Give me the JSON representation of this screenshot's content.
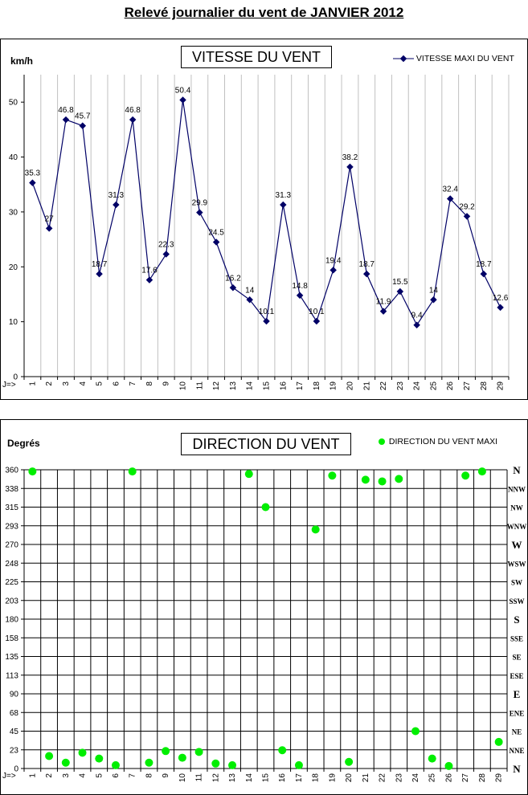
{
  "page": {
    "title": "Relevé journalier du vent de JANVIER 2012"
  },
  "chart_data": [
    {
      "type": "line",
      "title": "VITESSE DU VENT",
      "ylabel": "km/h",
      "xlabel": "J=>",
      "ylim": [
        0,
        55
      ],
      "yticks": [
        0,
        10,
        20,
        30,
        40,
        50
      ],
      "grid": "vertical",
      "legend_position": "top-right",
      "categories": [
        "1",
        "2",
        "3",
        "4",
        "5",
        "6",
        "7",
        "8",
        "9",
        "10",
        "11",
        "12",
        "13",
        "14",
        "15",
        "16",
        "17",
        "18",
        "19",
        "20",
        "21",
        "22",
        "23",
        "24",
        "25",
        "26",
        "27",
        "28",
        "29"
      ],
      "series": [
        {
          "name": "VITESSE MAXI DU VENT",
          "color": "#000066",
          "values": [
            35.3,
            27,
            46.8,
            45.7,
            18.7,
            31.3,
            46.8,
            17.6,
            22.3,
            50.4,
            29.9,
            24.5,
            16.2,
            14,
            10.1,
            31.3,
            14.8,
            10.1,
            19.4,
            38.2,
            18.7,
            11.9,
            15.5,
            9.4,
            14,
            32.4,
            29.2,
            18.7,
            12.6
          ],
          "labels": [
            "35.3",
            "27",
            "46.8",
            "45.7",
            "18.7",
            "31.3",
            "46.8",
            "17.6",
            "22.3",
            "50.4",
            "29.9",
            "24.5",
            "16.2",
            "14",
            "10.1",
            "31.3",
            "14.8",
            "10.1",
            "19.4",
            "38.2",
            "18.7",
            "11.9",
            "15.5",
            "9.4",
            "14",
            "32.4",
            "29.2",
            "18.7",
            "12.6"
          ]
        }
      ]
    },
    {
      "type": "scatter",
      "title": "DIRECTION DU VENT",
      "ylabel": "Degrés",
      "xlabel": "J=>",
      "ylim": [
        0,
        360
      ],
      "yticks": [
        "0",
        "23",
        "45",
        "68",
        "90",
        "113",
        "135",
        "158",
        "180",
        "203",
        "225",
        "248",
        "270",
        "293",
        "315",
        "338",
        "360"
      ],
      "compass": [
        "N",
        "NNE",
        "NE",
        "ENE",
        "E",
        "ESE",
        "SE",
        "SSE",
        "S",
        "SSW",
        "SW",
        "WSW",
        "W",
        "WNW",
        "NW",
        "NNW",
        "N"
      ],
      "grid": "both",
      "legend_position": "top-right",
      "categories": [
        "1",
        "2",
        "3",
        "4",
        "5",
        "6",
        "7",
        "8",
        "9",
        "10",
        "11",
        "12",
        "13",
        "14",
        "15",
        "16",
        "17",
        "18",
        "19",
        "20",
        "21",
        "22",
        "23",
        "24",
        "25",
        "26",
        "27",
        "28",
        "29"
      ],
      "series": [
        {
          "name": "DIRECTION DU VENT MAXI",
          "color": "#00EE00",
          "values": [
            358,
            15,
            7,
            19,
            12,
            4,
            358,
            7,
            21,
            13,
            20,
            6,
            4,
            355,
            315,
            22,
            4,
            288,
            353,
            8,
            348,
            346,
            349,
            45,
            12,
            3,
            353,
            358,
            32
          ]
        }
      ]
    }
  ]
}
